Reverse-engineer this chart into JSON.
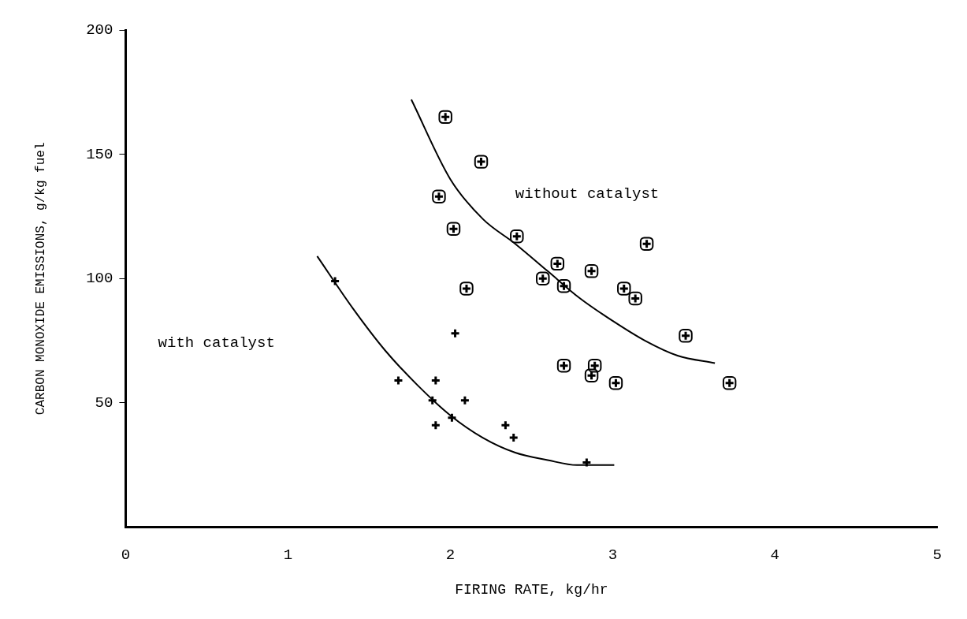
{
  "chart_data": {
    "type": "scatter",
    "xlabel": "FIRING RATE, kg/hr",
    "ylabel": "CARBON MONOXIDE EMISSIONS, g/kg fuel",
    "xlim": [
      0,
      5
    ],
    "xticks": [
      0,
      1,
      2,
      3,
      4,
      5
    ],
    "ylim": [
      0,
      200
    ],
    "yticks": [
      50,
      100,
      150,
      200
    ],
    "grid": false,
    "legend": false,
    "series": [
      {
        "type": "scatter",
        "color": "#000000",
        "marker": "square",
        "x": [
          1.97,
          2.19,
          1.93,
          2.02,
          2.41,
          3.21,
          2.66,
          2.87,
          2.57,
          2.7,
          2.1,
          3.07,
          3.14,
          3.45,
          2.7,
          2.89,
          2.87,
          3.02,
          3.72
        ],
        "values": [
          165,
          147,
          133,
          120,
          117,
          114,
          106,
          103,
          100,
          97,
          96,
          96,
          92,
          77,
          65,
          65,
          61,
          58,
          58
        ]
      },
      {
        "type": "scatter",
        "color": "#000000",
        "marker": "cross",
        "x": [
          1.29,
          2.03,
          1.68,
          1.91,
          1.89,
          2.09,
          1.91,
          2.01,
          2.34,
          2.39,
          2.84
        ],
        "values": [
          99,
          78,
          59,
          59,
          51,
          51,
          41,
          44,
          41,
          36,
          26
        ]
      },
      {
        "type": "line",
        "color": "#000000",
        "marker": "none",
        "x": [
          1.76,
          2.0,
          2.2,
          2.4,
          2.6,
          2.8,
          3.0,
          3.2,
          3.4,
          3.63
        ],
        "values": [
          172,
          140,
          124,
          114,
          103,
          92,
          83,
          75,
          69,
          66
        ]
      },
      {
        "type": "line",
        "color": "#000000",
        "marker": "none",
        "x": [
          1.18,
          1.4,
          1.6,
          1.8,
          2.0,
          2.2,
          2.4,
          2.6,
          2.78,
          3.01
        ],
        "values": [
          109,
          88,
          71,
          57,
          45,
          36,
          30,
          27,
          25,
          25
        ]
      }
    ],
    "annotations": [
      "without catalyst",
      "with catalyst"
    ]
  }
}
